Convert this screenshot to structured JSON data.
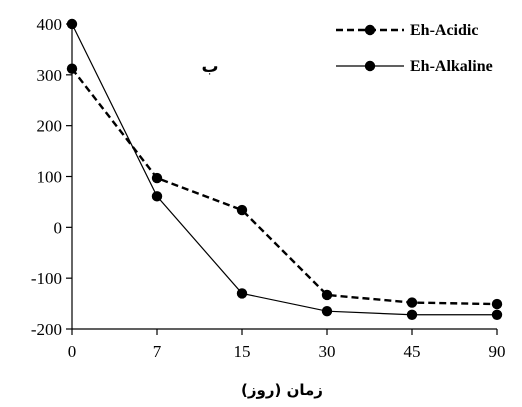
{
  "chart_data": {
    "type": "line",
    "categories": [
      "0",
      "7",
      "15",
      "30",
      "45",
      "90"
    ],
    "series": [
      {
        "name": "Eh-Acidic",
        "values": [
          312,
          97,
          34,
          -133,
          -148,
          -151
        ],
        "line_style": "dashed",
        "color": "#000000"
      },
      {
        "name": "Eh-Alkaline",
        "values": [
          400,
          61,
          -130,
          -165,
          -172,
          -172
        ],
        "line_style": "solid",
        "color": "#000000"
      }
    ],
    "xlabel": "زمان (روز)",
    "ylabel": "",
    "ylim": [
      -200,
      400
    ],
    "yticks": [
      "400",
      "300",
      "200",
      "100",
      "0",
      "-100",
      "-200"
    ],
    "annotation": "ب",
    "legend_position": "top-right",
    "grid": false
  }
}
